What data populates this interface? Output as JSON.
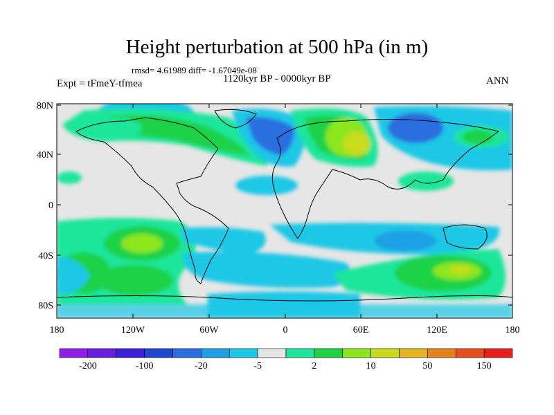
{
  "title": "Height perturbation at 500 hPa (in m)",
  "stats": "rmsd= 4.61989 diff= -1.67049e-08",
  "period": "1120kyr BP - 0000kyr BP",
  "experiment": "Expt = tFmeY-tfmea",
  "season": "ANN",
  "map": {
    "lat_ticks": [
      "80N",
      "40N",
      "0",
      "40S",
      "80S"
    ],
    "lon_ticks": [
      "180",
      "120W",
      "60W",
      "0",
      "60E",
      "120E",
      "180"
    ]
  },
  "colorbar": {
    "colors": [
      "#8c1ee6",
      "#6a1fe0",
      "#3c1fd8",
      "#1e46d0",
      "#2a6ee0",
      "#1ea0e6",
      "#1ec8e6",
      "#e6e6e6",
      "#1ee69a",
      "#1ed246",
      "#8ce61e",
      "#c8dc1e",
      "#e6b41e",
      "#e6821e",
      "#e6501e",
      "#e61e1e"
    ],
    "labels": [
      "-200",
      "-100",
      "-20",
      "-5",
      "2",
      "10",
      "50",
      "150"
    ]
  }
}
